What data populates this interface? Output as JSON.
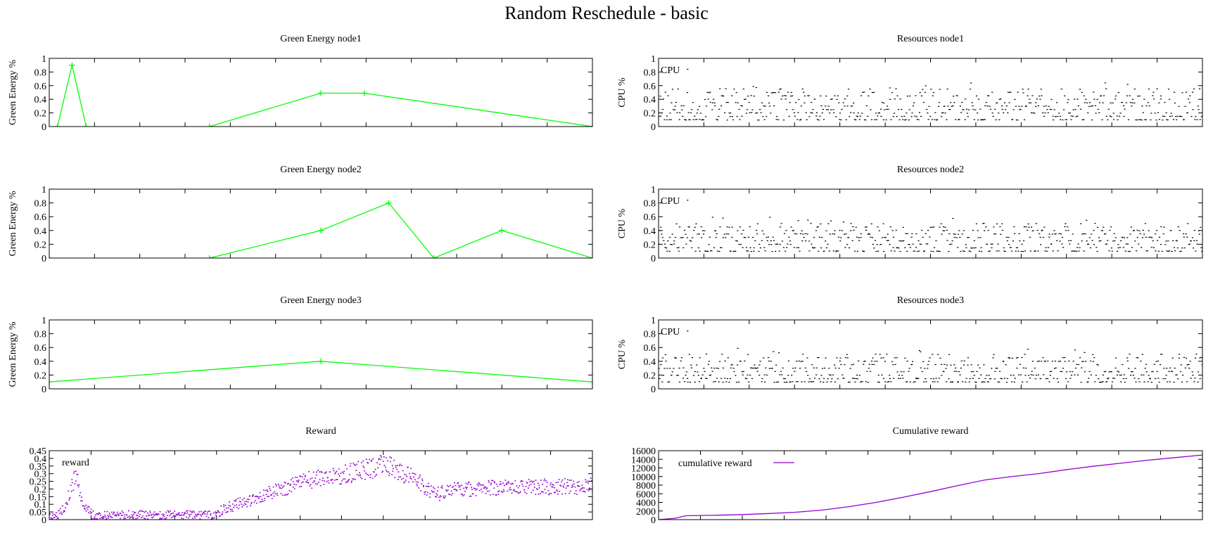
{
  "figure": {
    "title": "Random Reschedule - basic"
  },
  "chart_data": [
    {
      "id": "green1",
      "type": "line",
      "title": "Green Energy node1",
      "xlabel": "",
      "ylabel": "Green Energy %",
      "ylim": [
        0,
        1
      ],
      "yticks": [
        0,
        0.2,
        0.4,
        0.6,
        0.8,
        1
      ],
      "ytick_labels": [
        "0",
        "0.2",
        "0.4",
        "0.6",
        "0.8",
        "1"
      ],
      "xlim": [
        0,
        100
      ],
      "xticks": [
        0,
        8.33,
        16.67,
        25,
        33.33,
        41.67,
        50,
        58.33,
        66.67,
        75,
        83.33,
        91.67,
        100
      ],
      "series": [
        {
          "color": "#00ff00",
          "marker": "+",
          "points": [
            [
              1.5,
              0
            ],
            [
              4.2,
              0.9
            ],
            [
              6.8,
              0
            ],
            null,
            [
              29.5,
              0
            ],
            [
              50,
              0.49
            ],
            [
              58,
              0.49
            ],
            [
              100,
              0
            ]
          ]
        }
      ]
    },
    {
      "id": "green2",
      "type": "line",
      "title": "Green Energy node2",
      "xlabel": "",
      "ylabel": "Green Energy %",
      "ylim": [
        0,
        1
      ],
      "yticks": [
        0,
        0.2,
        0.4,
        0.6,
        0.8,
        1
      ],
      "ytick_labels": [
        "0",
        "0.2",
        "0.4",
        "0.6",
        "0.8",
        "1"
      ],
      "xlim": [
        0,
        100
      ],
      "xticks": [
        0,
        8.33,
        16.67,
        25,
        33.33,
        41.67,
        50,
        58.33,
        66.67,
        75,
        83.33,
        91.67,
        100
      ],
      "series": [
        {
          "color": "#00ff00",
          "marker": "+",
          "points": [
            [
              0,
              0
            ],
            null,
            [
              29.5,
              0
            ],
            [
              50,
              0.4
            ],
            [
              62.5,
              0.8
            ],
            [
              70.8,
              0
            ],
            [
              83.3,
              0.4
            ],
            [
              100,
              0
            ]
          ]
        }
      ]
    },
    {
      "id": "green3",
      "type": "line",
      "title": "Green Energy node3",
      "xlabel": "",
      "ylabel": "Green Energy %",
      "ylim": [
        0,
        1
      ],
      "yticks": [
        0,
        0.2,
        0.4,
        0.6,
        0.8,
        1
      ],
      "ytick_labels": [
        "0",
        "0.2",
        "0.4",
        "0.6",
        "0.8",
        "1"
      ],
      "xlim": [
        0,
        100
      ],
      "xticks": [
        0,
        8.33,
        16.67,
        25,
        33.33,
        41.67,
        50,
        58.33,
        66.67,
        75,
        83.33,
        91.67,
        100
      ],
      "series": [
        {
          "color": "#00ff00",
          "marker": "+",
          "points": [
            [
              0,
              0.1
            ],
            [
              50,
              0.4
            ],
            [
              100,
              0.1
            ]
          ]
        }
      ]
    },
    {
      "id": "res1",
      "type": "scatter",
      "title": "Resources node1",
      "xlabel": "",
      "ylabel": "CPU %",
      "ylim": [
        0,
        1
      ],
      "yticks": [
        0,
        0.2,
        0.4,
        0.6,
        0.8,
        1
      ],
      "ytick_labels": [
        "0",
        "0.2",
        "0.4",
        "0.6",
        "0.8",
        "1"
      ],
      "xlim": [
        0,
        100
      ],
      "xticks": [
        0,
        8.33,
        16.67,
        25,
        33.33,
        41.67,
        50,
        58.33,
        66.67,
        75,
        83.33,
        91.67,
        100
      ],
      "legend": {
        "position": "top-left",
        "entries": [
          "CPU"
        ]
      },
      "series": [
        {
          "name": "CPU",
          "color": "#000000",
          "marker": "dot",
          "seed": 11,
          "count": 600,
          "band": [
            0.08,
            0.55
          ],
          "peak": 0.84
        }
      ]
    },
    {
      "id": "res2",
      "type": "scatter",
      "title": "Resources node2",
      "xlabel": "",
      "ylabel": "CPU %",
      "ylim": [
        0,
        1
      ],
      "yticks": [
        0,
        0.2,
        0.4,
        0.6,
        0.8,
        1
      ],
      "ytick_labels": [
        "0",
        "0.2",
        "0.4",
        "0.6",
        "0.8",
        "1"
      ],
      "xlim": [
        0,
        100
      ],
      "xticks": [
        0,
        8.33,
        16.67,
        25,
        33.33,
        41.67,
        50,
        58.33,
        66.67,
        75,
        83.33,
        91.67,
        100
      ],
      "legend": {
        "position": "top-left",
        "entries": [
          "CPU"
        ]
      },
      "series": [
        {
          "name": "CPU",
          "color": "#000000",
          "marker": "dot",
          "seed": 23,
          "count": 600,
          "band": [
            0.08,
            0.5
          ],
          "peak": 0.84
        }
      ]
    },
    {
      "id": "res3",
      "type": "scatter",
      "title": "Resources node3",
      "xlabel": "",
      "ylabel": "CPU %",
      "ylim": [
        0,
        1
      ],
      "yticks": [
        0,
        0.2,
        0.4,
        0.6,
        0.8,
        1
      ],
      "ytick_labels": [
        "0",
        "0.2",
        "0.4",
        "0.6",
        "0.8",
        "1"
      ],
      "xlim": [
        0,
        100
      ],
      "xticks": [
        0,
        8.33,
        16.67,
        25,
        33.33,
        41.67,
        50,
        58.33,
        66.67,
        75,
        83.33,
        91.67,
        100
      ],
      "legend": {
        "position": "top-left",
        "entries": [
          "CPU"
        ]
      },
      "series": [
        {
          "name": "CPU",
          "color": "#000000",
          "marker": "dot",
          "seed": 37,
          "count": 600,
          "band": [
            0.08,
            0.5
          ],
          "peak": 0.84
        }
      ]
    },
    {
      "id": "reward",
      "type": "scatter",
      "title": "Reward",
      "xlabel": "",
      "ylabel": "",
      "ylim": [
        0,
        0.45
      ],
      "yticks": [
        0,
        0.05,
        0.1,
        0.15,
        0.2,
        0.25,
        0.3,
        0.35,
        0.4,
        0.45
      ],
      "ytick_labels": [
        "0",
        "0.05",
        "0.1",
        "0.15",
        "0.2",
        "0.25",
        "0.3",
        "0.35",
        "0.4",
        "0.45"
      ],
      "xlim": [
        0,
        100
      ],
      "xticks": [
        0,
        7.7,
        15.4,
        23.1,
        30.8,
        38.5,
        46.2,
        53.8,
        61.5,
        69.2,
        76.9,
        84.6,
        92.3,
        100
      ],
      "legend": {
        "position": "top-left",
        "entries": [
          "reward"
        ]
      },
      "series": [
        {
          "name": "reward",
          "color": "#9400d3",
          "marker": "dot",
          "seed": 5,
          "count": 900,
          "trend": [
            [
              0,
              0.02
            ],
            [
              1.5,
              0.02
            ],
            [
              3,
              0.1
            ],
            [
              5,
              0.3
            ],
            [
              6,
              0.12
            ],
            [
              8,
              0.03
            ],
            [
              12,
              0.03
            ],
            [
              30,
              0.03
            ],
            [
              33,
              0.08
            ],
            [
              40,
              0.17
            ],
            [
              48,
              0.26
            ],
            [
              55,
              0.3
            ],
            [
              62,
              0.36
            ],
            [
              68,
              0.25
            ],
            [
              71,
              0.16
            ],
            [
              74,
              0.2
            ],
            [
              85,
              0.21
            ],
            [
              100,
              0.22
            ]
          ]
        }
      ]
    },
    {
      "id": "cumreward",
      "type": "line",
      "title": "Cumulative reward",
      "xlabel": "",
      "ylabel": "",
      "ylim": [
        0,
        16000
      ],
      "yticks": [
        0,
        2000,
        4000,
        6000,
        8000,
        10000,
        12000,
        14000,
        16000
      ],
      "ytick_labels": [
        "0",
        "2000",
        "4000",
        "6000",
        "8000",
        "10000",
        "12000",
        "14000",
        "16000"
      ],
      "xlim": [
        0,
        100
      ],
      "xticks": [
        0,
        7.7,
        15.4,
        23.1,
        30.8,
        38.5,
        46.2,
        53.8,
        61.5,
        69.2,
        76.9,
        84.6,
        92.3,
        100
      ],
      "legend": {
        "position": "top-left",
        "entries": [
          "cumulative reward"
        ]
      },
      "series": [
        {
          "name": "cumulative reward",
          "color": "#9400d3",
          "marker": "none",
          "points": [
            [
              0,
              0
            ],
            [
              3,
              300
            ],
            [
              5,
              900
            ],
            [
              10,
              1000
            ],
            [
              15,
              1150
            ],
            [
              20,
              1400
            ],
            [
              25,
              1700
            ],
            [
              30,
              2200
            ],
            [
              35,
              3000
            ],
            [
              40,
              4000
            ],
            [
              45,
              5200
            ],
            [
              50,
              6500
            ],
            [
              55,
              7900
            ],
            [
              60,
              9200
            ],
            [
              65,
              10000
            ],
            [
              70,
              10700
            ],
            [
              75,
              11600
            ],
            [
              80,
              12400
            ],
            [
              85,
              13100
            ],
            [
              90,
              13800
            ],
            [
              95,
              14400
            ],
            [
              100,
              15000
            ]
          ]
        }
      ]
    }
  ]
}
